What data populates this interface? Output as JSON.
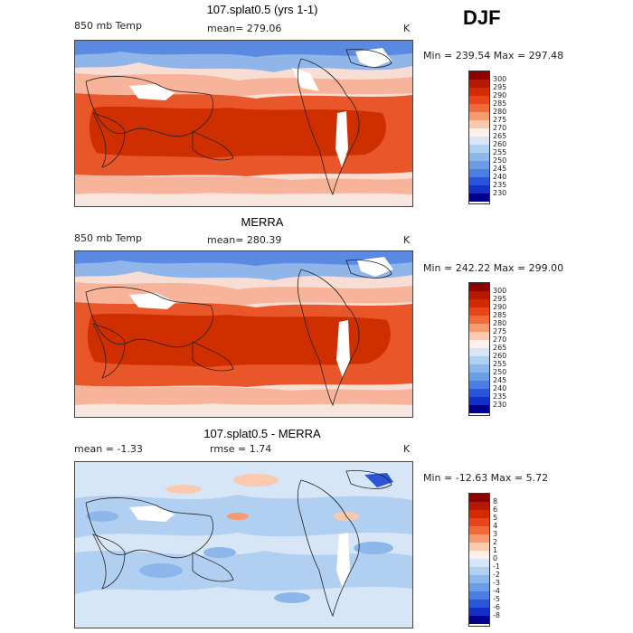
{
  "season": "DJF",
  "panels": [
    {
      "title": "107.splat0.5 (yrs 1-1)",
      "left_label": "850 mb Temp",
      "center_label": "mean= 279.06",
      "units": "K",
      "range_label": "Min = 239.54 Max = 297.48",
      "colorbar_labels": [
        "300",
        "295",
        "290",
        "285",
        "280",
        "275",
        "270",
        "265",
        "260",
        "255",
        "250",
        "245",
        "240",
        "235",
        "230"
      ]
    },
    {
      "title": "MERRA",
      "left_label": "850 mb Temp",
      "center_label": "mean= 280.39",
      "units": "K",
      "range_label": "Min = 242.22 Max = 299.00",
      "colorbar_labels": [
        "300",
        "295",
        "290",
        "285",
        "280",
        "275",
        "270",
        "265",
        "260",
        "255",
        "250",
        "245",
        "240",
        "235",
        "230"
      ]
    },
    {
      "title": "107.splat0.5 - MERRA",
      "left_label": "mean =  -1.33",
      "center_label": "rmse =   1.74",
      "units": "K",
      "range_label": "Min = -12.63 Max =   5.72",
      "colorbar_labels": [
        "8",
        "6",
        "5",
        "4",
        "3",
        "2",
        "1",
        "0",
        "-1",
        "-2",
        "-3",
        "-4",
        "-5",
        "-6",
        "-8"
      ]
    }
  ],
  "colors": {
    "temp_scale": [
      "#8b0000",
      "#b51a00",
      "#d42a00",
      "#e8461a",
      "#f06a3a",
      "#f79a72",
      "#fbc9ad",
      "#fdf0ea",
      "#d6e6f7",
      "#b1cff0",
      "#8db7ea",
      "#6a9de6",
      "#4a7ee0",
      "#2b55d8",
      "#1430c8",
      "#00008b"
    ],
    "diff_scale": [
      "#8b0000",
      "#b51a00",
      "#d42a00",
      "#e8461a",
      "#f06a3a",
      "#f79a72",
      "#fbc9ad",
      "#fdf0ea",
      "#d6e6f7",
      "#b1cff0",
      "#8db7ea",
      "#6a9de6",
      "#4a7ee0",
      "#2b55d8",
      "#1430c8",
      "#00008b"
    ]
  }
}
